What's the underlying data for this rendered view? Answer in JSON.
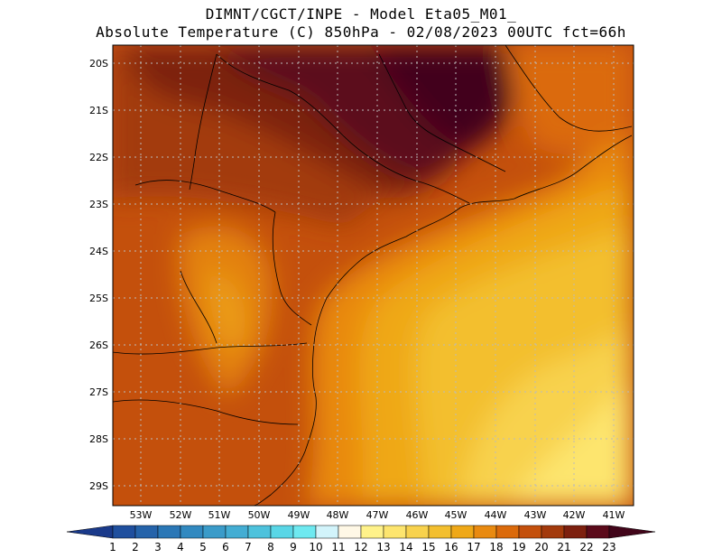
{
  "header": {
    "line1": "DIMNT/CGCT/INPE -  Model Eta05_M01_",
    "line2": "Absolute Temperature (C) 850hPa -  02/08/2023 00UTC fct=66h"
  },
  "map": {
    "lat_labels": [
      "20S",
      "21S",
      "22S",
      "23S",
      "24S",
      "25S",
      "26S",
      "27S",
      "28S",
      "29S"
    ],
    "lon_labels": [
      "53W",
      "52W",
      "51W",
      "50W",
      "49W",
      "48W",
      "47W",
      "46W",
      "45W",
      "44W",
      "43W",
      "42W",
      "41W"
    ],
    "lat_range": [
      -29.6,
      -19.6
    ],
    "lon_range": [
      -53.7,
      -40.4
    ]
  },
  "colorbar": {
    "labels": [
      "1",
      "2",
      "3",
      "4",
      "5",
      "6",
      "7",
      "8",
      "9",
      "10",
      "11",
      "12",
      "13",
      "14",
      "15",
      "16",
      "17",
      "18",
      "19",
      "20",
      "21",
      "22",
      "23"
    ],
    "colors": [
      "#1a3a8a",
      "#1f4f9e",
      "#2563aa",
      "#2a77b6",
      "#3189c0",
      "#3a9bc9",
      "#43add3",
      "#4dc2dc",
      "#59d6e6",
      "#6ee9f0",
      "#d2f4fb",
      "#fff8e6",
      "#fff28a",
      "#fde56e",
      "#f8d24d",
      "#f3bf2f",
      "#efa817",
      "#e98a10",
      "#db6a0b",
      "#c4500c",
      "#a33a0c",
      "#7d200f",
      "#5b0a1a",
      "#42051a"
    ]
  }
}
